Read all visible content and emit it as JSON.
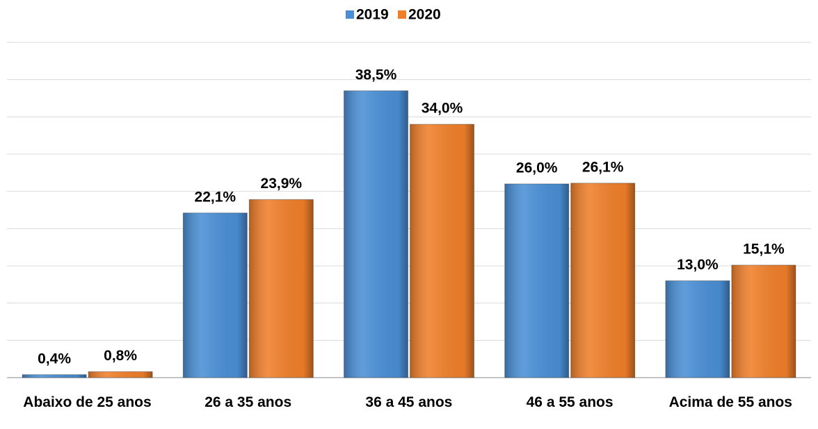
{
  "chart_data": {
    "type": "bar",
    "categories": [
      "Abaixo de 25 anos",
      "26 a 35 anos",
      "36 a 45 anos",
      "46 a 55 anos",
      "Acima de 55 anos"
    ],
    "series": [
      {
        "name": "2019",
        "color": "#4a8fd6",
        "values": [
          0.4,
          22.1,
          38.5,
          26.0,
          13.0
        ],
        "value_labels": [
          "0,4%",
          "22,1%",
          "38,5%",
          "26,0%",
          "13,0%"
        ]
      },
      {
        "name": "2020",
        "color": "#f07f2a",
        "values": [
          0.8,
          23.9,
          34.0,
          26.1,
          15.1
        ],
        "value_labels": [
          "0,8%",
          "23,9%",
          "34,0%",
          "26,1%",
          "15,1%"
        ]
      }
    ],
    "ylim": [
      0,
      45
    ],
    "yticks": [
      0,
      5,
      10,
      15,
      20,
      25,
      30,
      35,
      40,
      45
    ],
    "grid": true,
    "legend": "top"
  }
}
